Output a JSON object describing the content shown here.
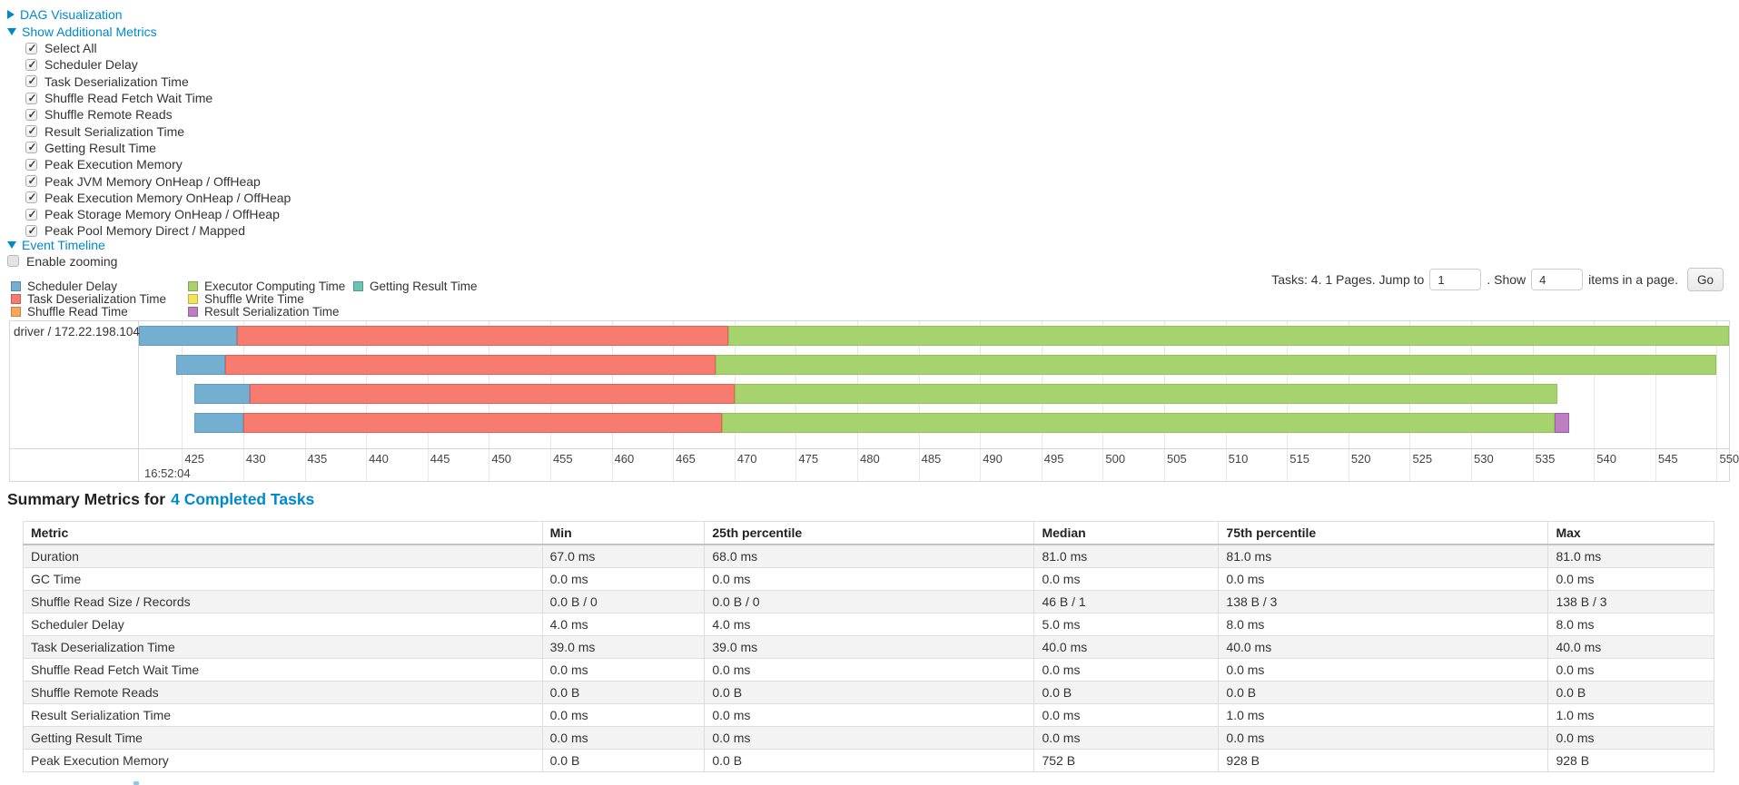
{
  "sections": {
    "dag_visualization": "DAG Visualization",
    "show_additional_metrics": "Show Additional Metrics",
    "event_timeline": "Event Timeline",
    "enable_zooming": "Enable zooming"
  },
  "metrics_panel": {
    "checked": true,
    "items": [
      "Select All",
      "Scheduler Delay",
      "Task Deserialization Time",
      "Shuffle Read Fetch Wait Time",
      "Shuffle Remote Reads",
      "Result Serialization Time",
      "Getting Result Time",
      "Peak Execution Memory",
      "Peak JVM Memory OnHeap / OffHeap",
      "Peak Execution Memory OnHeap / OffHeap",
      "Peak Storage Memory OnHeap / OffHeap",
      "Peak Pool Memory Direct / Mapped"
    ]
  },
  "enable_zooming_checked": false,
  "legend": {
    "columns": [
      [
        {
          "label": "Scheduler Delay",
          "color": "#74AFD1"
        },
        {
          "label": "Task Deserialization Time",
          "color": "#F87B6F"
        },
        {
          "label": "Shuffle Read Time",
          "color": "#F9A65A"
        }
      ],
      [
        {
          "label": "Executor Computing Time",
          "color": "#A7D36E"
        },
        {
          "label": "Shuffle Write Time",
          "color": "#F2E35B"
        },
        {
          "label": "Result Serialization Time",
          "color": "#BC7FC2"
        }
      ],
      [
        {
          "label": "Getting Result Time",
          "color": "#68C5B4"
        }
      ]
    ]
  },
  "pagination": {
    "tasks_text": "Tasks: 4. 1 Pages. Jump to",
    "jump_value": "1",
    "show_label": ". Show",
    "show_value": "4",
    "items_text": "items in a page.",
    "go_label": "Go"
  },
  "chart_data": {
    "type": "timeline",
    "executor_label": "driver / 172.22.198.104",
    "x_unit": "milliseconds within second 16:52:04",
    "x_domain": [
      421.5,
      551
    ],
    "ticks": [
      425,
      430,
      435,
      440,
      445,
      450,
      455,
      460,
      465,
      470,
      475,
      480,
      485,
      490,
      495,
      500,
      505,
      510,
      515,
      520,
      525,
      530,
      535,
      540,
      545,
      550
    ],
    "axis_time_label": "16:52:04",
    "colors": {
      "scheduler-delay": {
        "fill": "#74AFD1",
        "border": "#5E9BC1"
      },
      "task-deserialization": {
        "fill": "#F87B6F",
        "border": "#E2605A"
      },
      "executor-computing": {
        "fill": "#A7D36E",
        "border": "#92C253"
      },
      "result-serialization": {
        "fill": "#BC7FC2",
        "border": "#9E5BA7"
      }
    },
    "tasks": [
      {
        "row": 0,
        "segments": [
          {
            "type": "scheduler-delay",
            "start": 421.5,
            "end": 429.5
          },
          {
            "type": "task-deserialization",
            "start": 429.5,
            "end": 469.5
          },
          {
            "type": "executor-computing",
            "start": 469.5,
            "end": 551
          }
        ]
      },
      {
        "row": 1,
        "segments": [
          {
            "type": "scheduler-delay",
            "start": 424.5,
            "end": 428.5
          },
          {
            "type": "task-deserialization",
            "start": 428.5,
            "end": 468.5
          },
          {
            "type": "executor-computing",
            "start": 468.5,
            "end": 550
          }
        ]
      },
      {
        "row": 2,
        "segments": [
          {
            "type": "scheduler-delay",
            "start": 426,
            "end": 430.5
          },
          {
            "type": "task-deserialization",
            "start": 430.5,
            "end": 470
          },
          {
            "type": "executor-computing",
            "start": 470,
            "end": 537
          }
        ]
      },
      {
        "row": 3,
        "segments": [
          {
            "type": "scheduler-delay",
            "start": 426,
            "end": 430
          },
          {
            "type": "task-deserialization",
            "start": 430,
            "end": 469
          },
          {
            "type": "executor-computing",
            "start": 469,
            "end": 536.8
          },
          {
            "type": "result-serialization",
            "start": 536.8,
            "end": 538
          }
        ]
      }
    ]
  },
  "summary": {
    "heading_prefix": "Summary Metrics for",
    "heading_link": "4 Completed Tasks",
    "columns": [
      "Metric",
      "Min",
      "25th percentile",
      "Median",
      "75th percentile",
      "Max"
    ],
    "rows": [
      {
        "metric": "Duration",
        "values": [
          "67.0 ms",
          "68.0 ms",
          "81.0 ms",
          "81.0 ms",
          "81.0 ms"
        ]
      },
      {
        "metric": "GC Time",
        "values": [
          "0.0 ms",
          "0.0 ms",
          "0.0 ms",
          "0.0 ms",
          "0.0 ms"
        ]
      },
      {
        "metric": "Shuffle Read Size / Records",
        "values": [
          "0.0 B / 0",
          "0.0 B / 0",
          "46 B / 1",
          "138 B / 3",
          "138 B / 3"
        ]
      },
      {
        "metric": "Scheduler Delay",
        "values": [
          "4.0 ms",
          "4.0 ms",
          "5.0 ms",
          "8.0 ms",
          "8.0 ms"
        ]
      },
      {
        "metric": "Task Deserialization Time",
        "values": [
          "39.0 ms",
          "39.0 ms",
          "40.0 ms",
          "40.0 ms",
          "40.0 ms"
        ]
      },
      {
        "metric": "Shuffle Read Fetch Wait Time",
        "values": [
          "0.0 ms",
          "0.0 ms",
          "0.0 ms",
          "0.0 ms",
          "0.0 ms"
        ]
      },
      {
        "metric": "Shuffle Remote Reads",
        "values": [
          "0.0 B",
          "0.0 B",
          "0.0 B",
          "0.0 B",
          "0.0 B"
        ]
      },
      {
        "metric": "Result Serialization Time",
        "values": [
          "0.0 ms",
          "0.0 ms",
          "0.0 ms",
          "1.0 ms",
          "1.0 ms"
        ]
      },
      {
        "metric": "Getting Result Time",
        "values": [
          "0.0 ms",
          "0.0 ms",
          "0.0 ms",
          "0.0 ms",
          "0.0 ms"
        ]
      },
      {
        "metric": "Peak Execution Memory",
        "values": [
          "0.0 B",
          "0.0 B",
          "752 B",
          "928 B",
          "928 B"
        ]
      }
    ]
  },
  "link_color": "#0088cc"
}
